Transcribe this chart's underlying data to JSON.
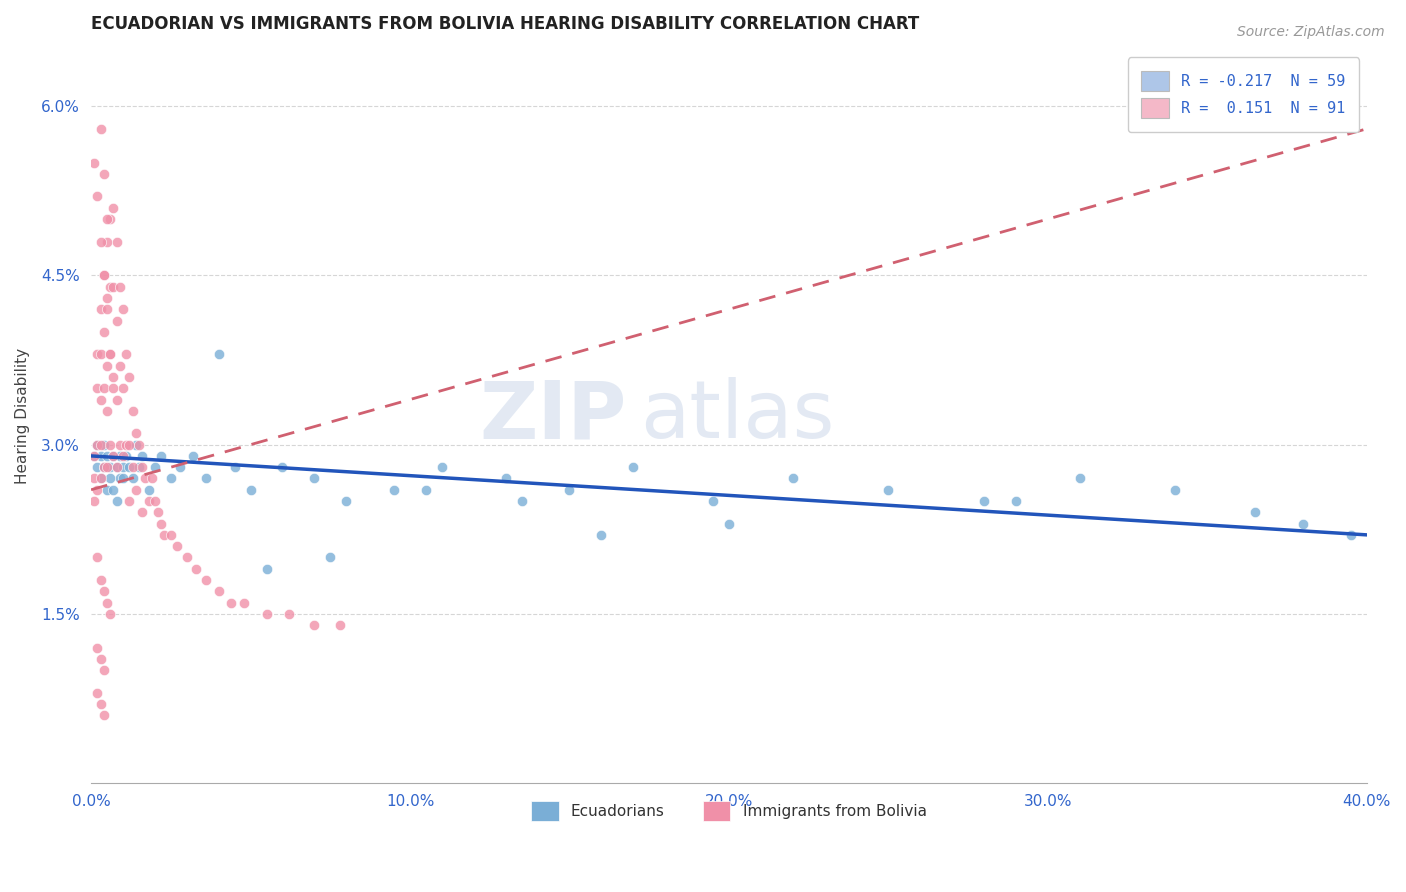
{
  "title": "ECUADORIAN VS IMMIGRANTS FROM BOLIVIA HEARING DISABILITY CORRELATION CHART",
  "source": "Source: ZipAtlas.com",
  "ylabel": "Hearing Disability",
  "xlim": [
    0.0,
    0.4
  ],
  "ylim": [
    0.0,
    0.065
  ],
  "xticks": [
    0.0,
    0.1,
    0.2,
    0.3,
    0.4
  ],
  "xtick_labels": [
    "0.0%",
    "10.0%",
    "20.0%",
    "30.0%",
    "40.0%"
  ],
  "yticks": [
    0.015,
    0.03,
    0.045,
    0.06
  ],
  "ytick_labels": [
    "1.5%",
    "3.0%",
    "4.5%",
    "6.0%"
  ],
  "legend_entries": [
    {
      "label": "Ecuadorians",
      "R": "-0.217",
      "N": "59",
      "color": "#aec6e8",
      "text_color": "#3366cc"
    },
    {
      "label": "Immigrants from Bolivia",
      "R": "0.151",
      "N": "91",
      "color": "#f4b8c8",
      "text_color": "#3366cc"
    }
  ],
  "ecuadorians_scatter_color": "#7aaed6",
  "bolivia_scatter_color": "#f090a8",
  "blue_line_color": "#2255bb",
  "pink_line_color": "#d06070",
  "grid_color": "#cccccc",
  "background_color": "#ffffff",
  "title_fontsize": 12,
  "axis_label_fontsize": 11,
  "tick_fontsize": 11,
  "source_fontsize": 10,
  "blue_trend": [
    0.0,
    0.4,
    0.029,
    0.022
  ],
  "pink_trend": [
    0.0,
    0.4,
    0.026,
    0.058
  ],
  "ecuadorians_x": [
    0.001,
    0.002,
    0.002,
    0.003,
    0.003,
    0.004,
    0.004,
    0.005,
    0.005,
    0.006,
    0.006,
    0.007,
    0.007,
    0.008,
    0.008,
    0.009,
    0.009,
    0.01,
    0.01,
    0.011,
    0.012,
    0.013,
    0.014,
    0.015,
    0.016,
    0.018,
    0.02,
    0.022,
    0.025,
    0.028,
    0.032,
    0.036,
    0.04,
    0.045,
    0.05,
    0.06,
    0.07,
    0.08,
    0.095,
    0.11,
    0.13,
    0.15,
    0.17,
    0.195,
    0.22,
    0.25,
    0.28,
    0.31,
    0.34,
    0.365,
    0.38,
    0.395,
    0.29,
    0.2,
    0.16,
    0.135,
    0.105,
    0.075,
    0.055
  ],
  "ecuadorians_y": [
    0.029,
    0.028,
    0.03,
    0.029,
    0.027,
    0.03,
    0.028,
    0.029,
    0.026,
    0.028,
    0.027,
    0.029,
    0.026,
    0.028,
    0.025,
    0.027,
    0.029,
    0.028,
    0.027,
    0.029,
    0.028,
    0.027,
    0.03,
    0.028,
    0.029,
    0.026,
    0.028,
    0.029,
    0.027,
    0.028,
    0.029,
    0.027,
    0.038,
    0.028,
    0.026,
    0.028,
    0.027,
    0.025,
    0.026,
    0.028,
    0.027,
    0.026,
    0.028,
    0.025,
    0.027,
    0.026,
    0.025,
    0.027,
    0.026,
    0.024,
    0.023,
    0.022,
    0.025,
    0.023,
    0.022,
    0.025,
    0.026,
    0.02,
    0.019
  ],
  "bolivia_x": [
    0.001,
    0.001,
    0.001,
    0.002,
    0.002,
    0.002,
    0.002,
    0.003,
    0.003,
    0.003,
    0.003,
    0.003,
    0.004,
    0.004,
    0.004,
    0.004,
    0.005,
    0.005,
    0.005,
    0.005,
    0.005,
    0.006,
    0.006,
    0.006,
    0.006,
    0.007,
    0.007,
    0.007,
    0.007,
    0.008,
    0.008,
    0.008,
    0.008,
    0.009,
    0.009,
    0.009,
    0.01,
    0.01,
    0.01,
    0.011,
    0.011,
    0.012,
    0.012,
    0.012,
    0.013,
    0.013,
    0.014,
    0.014,
    0.015,
    0.016,
    0.016,
    0.017,
    0.018,
    0.019,
    0.02,
    0.021,
    0.022,
    0.023,
    0.025,
    0.027,
    0.03,
    0.033,
    0.036,
    0.04,
    0.044,
    0.048,
    0.055,
    0.062,
    0.07,
    0.078,
    0.001,
    0.002,
    0.003,
    0.004,
    0.005,
    0.006,
    0.007,
    0.003,
    0.004,
    0.005,
    0.002,
    0.003,
    0.004,
    0.005,
    0.006,
    0.002,
    0.003,
    0.004,
    0.002,
    0.003,
    0.004
  ],
  "bolivia_y": [
    0.029,
    0.027,
    0.025,
    0.038,
    0.035,
    0.03,
    0.026,
    0.042,
    0.038,
    0.034,
    0.03,
    0.027,
    0.045,
    0.04,
    0.035,
    0.028,
    0.048,
    0.043,
    0.037,
    0.033,
    0.028,
    0.05,
    0.044,
    0.038,
    0.03,
    0.051,
    0.044,
    0.036,
    0.029,
    0.048,
    0.041,
    0.034,
    0.028,
    0.044,
    0.037,
    0.03,
    0.042,
    0.035,
    0.029,
    0.038,
    0.03,
    0.036,
    0.03,
    0.025,
    0.033,
    0.028,
    0.031,
    0.026,
    0.03,
    0.028,
    0.024,
    0.027,
    0.025,
    0.027,
    0.025,
    0.024,
    0.023,
    0.022,
    0.022,
    0.021,
    0.02,
    0.019,
    0.018,
    0.017,
    0.016,
    0.016,
    0.015,
    0.015,
    0.014,
    0.014,
    0.055,
    0.052,
    0.048,
    0.045,
    0.042,
    0.038,
    0.035,
    0.058,
    0.054,
    0.05,
    0.02,
    0.018,
    0.017,
    0.016,
    0.015,
    0.012,
    0.011,
    0.01,
    0.008,
    0.007,
    0.006
  ]
}
